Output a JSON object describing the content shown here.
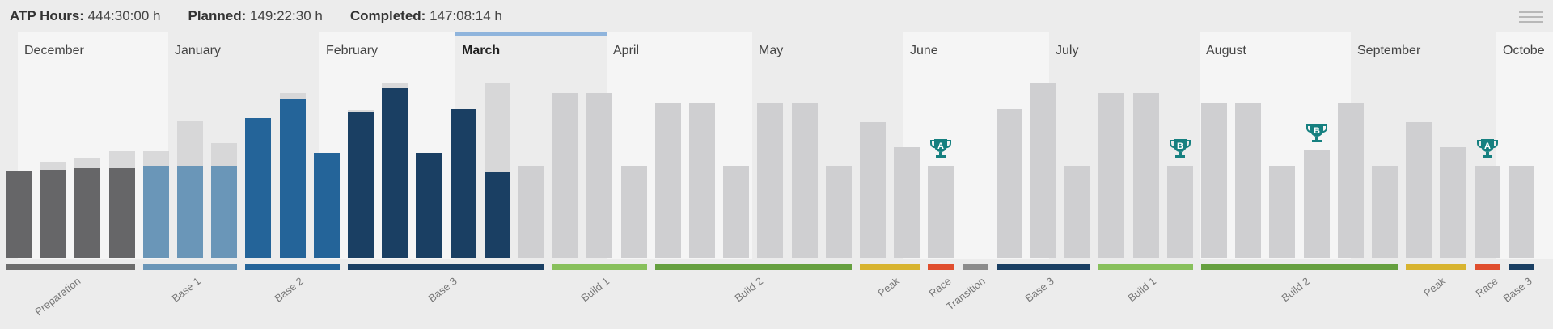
{
  "header": {
    "stats": [
      {
        "label": "ATP Hours:",
        "value": "444:30:00 h"
      },
      {
        "label": "Planned:",
        "value": "149:22:30 h"
      },
      {
        "label": "Completed:",
        "value": "147:08:14 h"
      }
    ]
  },
  "months": [
    {
      "name": "December",
      "shade": "#f5f5f5",
      "current": false
    },
    {
      "name": "January",
      "shade": "#ececec",
      "current": false
    },
    {
      "name": "February",
      "shade": "#f5f5f5",
      "current": false
    },
    {
      "name": "March",
      "shade": "#ececec",
      "current": true
    },
    {
      "name": "April",
      "shade": "#f5f5f5",
      "current": false
    },
    {
      "name": "May",
      "shade": "#ececec",
      "current": false
    },
    {
      "name": "June",
      "shade": "#f5f5f5",
      "current": false
    },
    {
      "name": "July",
      "shade": "#ececec",
      "current": false
    },
    {
      "name": "August",
      "shade": "#f5f5f5",
      "current": false
    },
    {
      "name": "September",
      "shade": "#ececec",
      "current": false
    },
    {
      "name": "Octobe",
      "shade": "#f5f5f5",
      "current": false
    }
  ],
  "weeks": [
    {
      "planned": 0.497,
      "completed": 0.497,
      "color": "#666668"
    },
    {
      "planned": 0.549,
      "completed": 0.503,
      "color": "#666668"
    },
    {
      "planned": 0.571,
      "completed": 0.514,
      "color": "#666668"
    },
    {
      "planned": 0.611,
      "completed": 0.514,
      "color": "#666668"
    },
    {
      "planned": 0.611,
      "completed": 0.526,
      "color": "#6a96b8"
    },
    {
      "planned": 0.783,
      "completed": 0.526,
      "color": "#6a96b8"
    },
    {
      "planned": 0.657,
      "completed": 0.526,
      "color": "#6a96b8"
    },
    {
      "planned": 0.8,
      "completed": 0.8,
      "color": "#246499"
    },
    {
      "planned": 0.943,
      "completed": 0.914,
      "color": "#246499"
    },
    {
      "planned": 0.6,
      "completed": 0.6,
      "color": "#246499"
    },
    {
      "planned": 0.846,
      "completed": 0.834,
      "color": "#1a3f63"
    },
    {
      "planned": 1.0,
      "completed": 0.971,
      "color": "#1a3f63"
    },
    {
      "planned": 0.6,
      "completed": 0.6,
      "color": "#1a3f63"
    },
    {
      "planned": 0.851,
      "completed": 0.851,
      "color": "#1a3f63"
    },
    {
      "planned": 1.0,
      "completed": 0.491,
      "color": "#1a3f63"
    },
    {
      "planned": 0.526,
      "completed": 0,
      "color": "#cfcfd1"
    },
    {
      "planned": 0.943,
      "completed": 0,
      "color": "#cfcfd1"
    },
    {
      "planned": 0.943,
      "completed": 0,
      "color": "#cfcfd1"
    },
    {
      "planned": 0.526,
      "completed": 0,
      "color": "#cfcfd1"
    },
    {
      "planned": 0.891,
      "completed": 0,
      "color": "#cfcfd1"
    },
    {
      "planned": 0.891,
      "completed": 0,
      "color": "#cfcfd1"
    },
    {
      "planned": 0.526,
      "completed": 0,
      "color": "#cfcfd1"
    },
    {
      "planned": 0.891,
      "completed": 0,
      "color": "#cfcfd1"
    },
    {
      "planned": 0.891,
      "completed": 0,
      "color": "#cfcfd1"
    },
    {
      "planned": 0.526,
      "completed": 0,
      "color": "#cfcfd1"
    },
    {
      "planned": 0.777,
      "completed": 0,
      "color": "#cfcfd1"
    },
    {
      "planned": 0.634,
      "completed": 0,
      "color": "#cfcfd1"
    },
    {
      "planned": 0.526,
      "completed": 0,
      "color": "#cfcfd1"
    },
    {
      "planned": 0,
      "completed": 0,
      "color": "#cfcfd1"
    },
    {
      "planned": 0.851,
      "completed": 0,
      "color": "#cfcfd1"
    },
    {
      "planned": 1.0,
      "completed": 0,
      "color": "#cfcfd1"
    },
    {
      "planned": 0.526,
      "completed": 0,
      "color": "#cfcfd1"
    },
    {
      "planned": 0.943,
      "completed": 0,
      "color": "#cfcfd1"
    },
    {
      "planned": 0.943,
      "completed": 0,
      "color": "#cfcfd1"
    },
    {
      "planned": 0.526,
      "completed": 0,
      "color": "#cfcfd1"
    },
    {
      "planned": 0.891,
      "completed": 0,
      "color": "#cfcfd1"
    },
    {
      "planned": 0.891,
      "completed": 0,
      "color": "#cfcfd1"
    },
    {
      "planned": 0.526,
      "completed": 0,
      "color": "#cfcfd1"
    },
    {
      "planned": 0.617,
      "completed": 0,
      "color": "#cfcfd1"
    },
    {
      "planned": 0.891,
      "completed": 0,
      "color": "#cfcfd1"
    },
    {
      "planned": 0.526,
      "completed": 0,
      "color": "#cfcfd1"
    },
    {
      "planned": 0.777,
      "completed": 0,
      "color": "#cfcfd1"
    },
    {
      "planned": 0.634,
      "completed": 0,
      "color": "#cfcfd1"
    },
    {
      "planned": 0.526,
      "completed": 0,
      "color": "#cfcfd1"
    },
    {
      "planned": 0.526,
      "completed": 0,
      "color": "#cfcfd1"
    }
  ],
  "races": [
    {
      "week": 27,
      "priority": "A"
    },
    {
      "week": 34,
      "priority": "B"
    },
    {
      "week": 38,
      "priority": "B"
    },
    {
      "week": 43,
      "priority": "A"
    }
  ],
  "phases": [
    {
      "name": "Preparation",
      "start": 0,
      "end": 3,
      "color": "#6c6c6c"
    },
    {
      "name": "Base 1",
      "start": 4,
      "end": 6,
      "color": "#6a96b8"
    },
    {
      "name": "Base 2",
      "start": 7,
      "end": 9,
      "color": "#246499"
    },
    {
      "name": "Base 3",
      "start": 10,
      "end": 15,
      "color": "#1a3f63"
    },
    {
      "name": "Build 1",
      "start": 16,
      "end": 18,
      "color": "#88c05c"
    },
    {
      "name": "Build 2",
      "start": 19,
      "end": 24,
      "color": "#66a040"
    },
    {
      "name": "Peak",
      "start": 25,
      "end": 26,
      "color": "#d8b430"
    },
    {
      "name": "Race",
      "start": 27,
      "end": 27,
      "color": "#e04e2e"
    },
    {
      "name": "Transition",
      "start": 28,
      "end": 28,
      "color": "#8c8c8c"
    },
    {
      "name": "Base 3",
      "start": 29,
      "end": 31,
      "color": "#1a3f63"
    },
    {
      "name": "Build 1",
      "start": 32,
      "end": 34,
      "color": "#88c05c"
    },
    {
      "name": "Build 2",
      "start": 35,
      "end": 40,
      "color": "#66a040"
    },
    {
      "name": "Peak",
      "start": 41,
      "end": 42,
      "color": "#d8b430"
    },
    {
      "name": "Race",
      "start": 43,
      "end": 43,
      "color": "#e04e2e"
    },
    {
      "name": "Base 3",
      "start": 44,
      "end": 44,
      "color": "#1a3f63"
    }
  ],
  "icons": {
    "menu": "hamburger-menu-icon",
    "race": "trophy-icon"
  },
  "colors": {
    "trophy": "#168080",
    "planned_remaining": "#d3d3d5"
  }
}
